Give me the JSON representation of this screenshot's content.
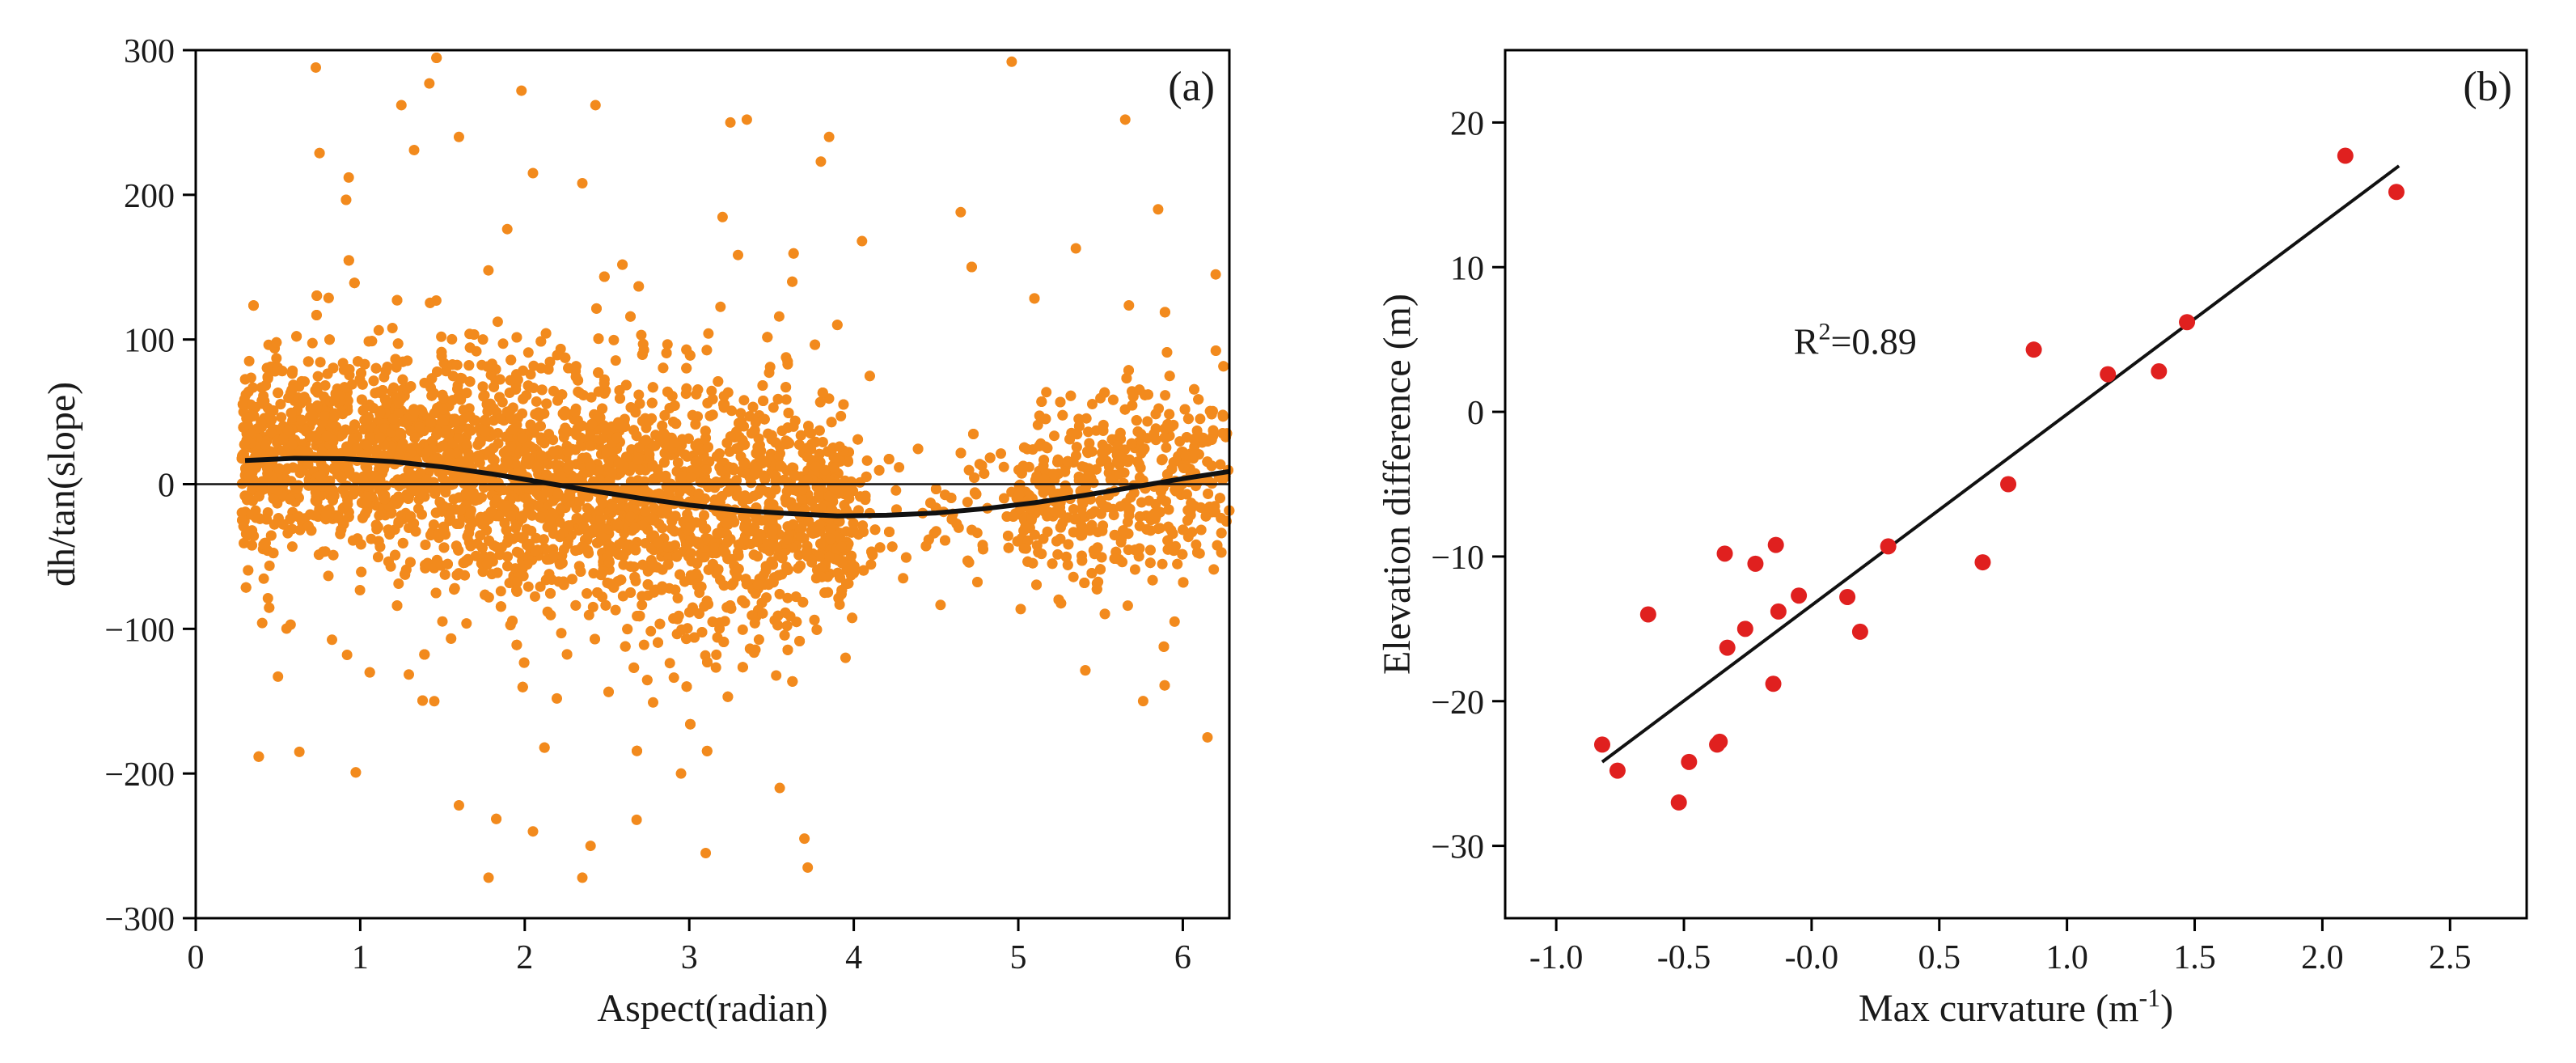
{
  "figure": {
    "panels": [
      "a",
      "b"
    ]
  },
  "colors": {
    "scatter_a": "#f28a1d",
    "scatter_b": "#e0201f",
    "fit": "#111111",
    "axis": "#000000"
  },
  "chart_data": [
    {
      "type": "scatter",
      "panel_label": "(a)",
      "title": "",
      "xlabel": "Aspect(radian)",
      "ylabel": "dh/tan(slope)",
      "xlim": [
        0,
        6.283
      ],
      "ylim": [
        -300,
        300
      ],
      "xticks": [
        0,
        1,
        2,
        3,
        4,
        5,
        6
      ],
      "xtick_labels": [
        "0",
        "1",
        "2",
        "3",
        "4",
        "5",
        "6"
      ],
      "yticks": [
        -300,
        -200,
        -100,
        0,
        100,
        200,
        300
      ],
      "ytick_labels": [
        "−300",
        "−200",
        "−100",
        "0",
        "100",
        "200",
        "300"
      ],
      "reference_line_y": 0,
      "fit_curve": {
        "model": "a*cos(b - x) + c",
        "a": 20,
        "b": 0.7,
        "c": -2,
        "x": [
          0.3,
          0.6,
          0.9,
          1.2,
          1.5,
          1.8,
          2.1,
          2.4,
          2.7,
          3.0,
          3.3,
          3.6,
          3.9,
          4.2,
          4.5,
          4.8,
          5.1,
          5.4,
          5.7,
          6.0,
          6.283
        ],
        "y": [
          16.4,
          17.9,
          17.6,
          15.6,
          11.9,
          7.1,
          1.4,
          -4.4,
          -9.7,
          -14.4,
          -18.1,
          -20.3,
          -21.9,
          -21.5,
          -19.9,
          -16.9,
          -12.8,
          -7.7,
          -2.0,
          3.8,
          8.8
        ]
      },
      "series": [
        {
          "name": "samples",
          "point_count": 6000,
          "x_range": [
            0.28,
            6.283
          ],
          "note": "dense point cloud; core band spans roughly -60 to +60 with outliers to +/-280",
          "outliers": [
            {
              "x": 0.73,
              "y": 288
            },
            {
              "x": 1.42,
              "y": 277
            },
            {
              "x": 1.25,
              "y": 262
            },
            {
              "x": 2.43,
              "y": 262
            },
            {
              "x": 1.98,
              "y": 272
            },
            {
              "x": 4.96,
              "y": 292
            },
            {
              "x": 5.65,
              "y": 252
            },
            {
              "x": 3.25,
              "y": 250
            },
            {
              "x": 3.35,
              "y": 252
            },
            {
              "x": 2.35,
              "y": 208
            },
            {
              "x": 1.6,
              "y": 240
            },
            {
              "x": 3.85,
              "y": 240
            },
            {
              "x": 3.8,
              "y": 223
            },
            {
              "x": 4.65,
              "y": 188
            },
            {
              "x": 5.85,
              "y": 190
            },
            {
              "x": 5.35,
              "y": 163
            },
            {
              "x": 6.2,
              "y": 145
            },
            {
              "x": 0.93,
              "y": 212
            },
            {
              "x": 2.05,
              "y": 215
            },
            {
              "x": 4.05,
              "y": 168
            },
            {
              "x": 1.78,
              "y": -272
            },
            {
              "x": 2.35,
              "y": -272
            },
            {
              "x": 3.72,
              "y": -265
            },
            {
              "x": 3.1,
              "y": -255
            },
            {
              "x": 2.68,
              "y": -232
            },
            {
              "x": 2.05,
              "y": -240
            },
            {
              "x": 1.6,
              "y": -222
            },
            {
              "x": 0.63,
              "y": -185
            },
            {
              "x": 6.15,
              "y": -175
            },
            {
              "x": 3.55,
              "y": -210
            },
            {
              "x": 2.4,
              "y": -250
            },
            {
              "x": 3.7,
              "y": -245
            },
            {
              "x": 0.5,
              "y": -133
            },
            {
              "x": 4.3,
              "y": -65
            },
            {
              "x": 5.1,
              "y": -35
            },
            {
              "x": 5.95,
              "y": -95
            },
            {
              "x": 0.92,
              "y": -118
            },
            {
              "x": 3.95,
              "y": -120
            },
            {
              "x": 1.45,
              "y": -150
            },
            {
              "x": 2.95,
              "y": -200
            }
          ]
        }
      ]
    },
    {
      "type": "scatter",
      "panel_label": "(b)",
      "title": "",
      "xlabel": "Max curvature (m",
      "xlabel_sup": "-1",
      "xlabel_end": ")",
      "ylabel": "Elevation difference (m)",
      "xlim": [
        -1.2,
        2.8
      ],
      "ylim": [
        -35,
        25
      ],
      "xticks": [
        -1.0,
        -0.5,
        0.0,
        0.5,
        1.0,
        1.5,
        2.0,
        2.5
      ],
      "xtick_labels": [
        "-1.0",
        "-0.5",
        "-0.0",
        "0.5",
        "1.0",
        "1.5",
        "2.0",
        "2.5"
      ],
      "yticks": [
        -30,
        -20,
        -10,
        0,
        10,
        20
      ],
      "ytick_labels": [
        "−30",
        "−20",
        "−10",
        "0",
        "10",
        "20"
      ],
      "annotation": {
        "text": "R",
        "sup": "2",
        "rest": "=0.89"
      },
      "fit_line": {
        "x": [
          -0.82,
          2.3
        ],
        "y": [
          -24.2,
          17.0
        ]
      },
      "series": [
        {
          "name": "samples",
          "x": [
            -0.82,
            -0.76,
            -0.64,
            -0.52,
            -0.48,
            -0.37,
            -0.36,
            -0.34,
            -0.33,
            -0.26,
            -0.22,
            -0.15,
            -0.14,
            -0.13,
            -0.05,
            0.14,
            0.19,
            0.3,
            0.67,
            0.77,
            0.87,
            1.16,
            1.36,
            1.47,
            2.09,
            2.29
          ],
          "y": [
            -23.0,
            -24.8,
            -14.0,
            -27.0,
            -24.2,
            -23.0,
            -22.8,
            -9.8,
            -16.3,
            -15.0,
            -10.5,
            -18.8,
            -9.2,
            -13.8,
            -12.7,
            -12.8,
            -15.2,
            -9.3,
            -10.4,
            -5.0,
            4.3,
            2.6,
            2.8,
            6.2,
            17.7,
            15.2
          ]
        }
      ]
    }
  ]
}
